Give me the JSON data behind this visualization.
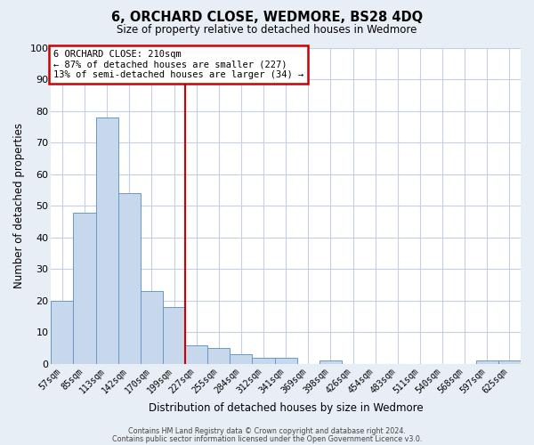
{
  "title": "6, ORCHARD CLOSE, WEDMORE, BS28 4DQ",
  "subtitle": "Size of property relative to detached houses in Wedmore",
  "xlabel": "Distribution of detached houses by size in Wedmore",
  "ylabel": "Number of detached properties",
  "bar_labels": [
    "57sqm",
    "85sqm",
    "113sqm",
    "142sqm",
    "170sqm",
    "199sqm",
    "227sqm",
    "255sqm",
    "284sqm",
    "312sqm",
    "341sqm",
    "369sqm",
    "398sqm",
    "426sqm",
    "454sqm",
    "483sqm",
    "511sqm",
    "540sqm",
    "568sqm",
    "597sqm",
    "625sqm"
  ],
  "bar_values": [
    20,
    48,
    78,
    54,
    23,
    18,
    6,
    5,
    3,
    2,
    2,
    0,
    1,
    0,
    0,
    0,
    0,
    0,
    0,
    1,
    1
  ],
  "bar_color": "#c8d8ec",
  "bar_edge_color": "#6699cc",
  "vline_x": 5.5,
  "vline_color": "#cc0000",
  "ylim": [
    0,
    100
  ],
  "annotation_box_text": "6 ORCHARD CLOSE: 210sqm\n← 87% of detached houses are smaller (227)\n13% of semi-detached houses are larger (34) →",
  "annotation_box_color": "#cc0000",
  "footer_line1": "Contains HM Land Registry data © Crown copyright and database right 2024.",
  "footer_line2": "Contains public sector information licensed under the Open Government Licence v3.0.",
  "background_color": "#e8eef5",
  "plot_bg_color": "#ffffff",
  "grid_color": "#c5cfe0"
}
